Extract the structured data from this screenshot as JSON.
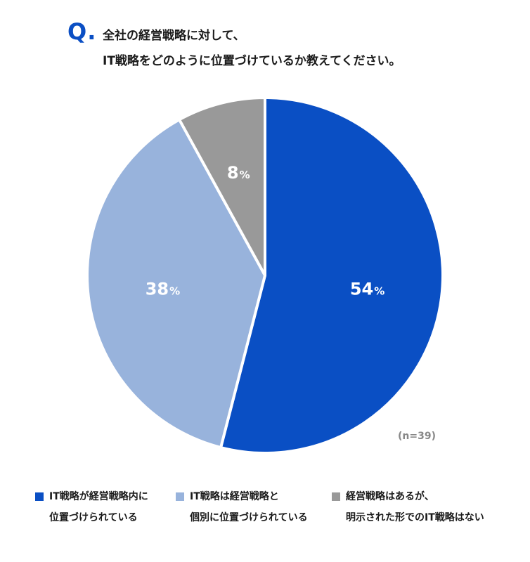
{
  "question": {
    "mark": "Q.",
    "line1": "全社の経営戦略に対して、",
    "line2": "IT戦略をどのように位置づけているか教えてください。"
  },
  "chart_data": {
    "type": "pie",
    "categories": [
      "IT戦略が経営戦略内に位置づけられている",
      "IT戦略は経営戦略と個別に位置づけられている",
      "経営戦略はあるが、明示された形でのIT戦略はない"
    ],
    "values": [
      54,
      38,
      8
    ],
    "unit": "%",
    "colors": [
      "#0a4fc4",
      "#98b3dc",
      "#999999"
    ],
    "sample_note": "(n=39)",
    "legend": {
      "placement": "bottom",
      "items": [
        {
          "line1": "IT戦略が経営戦略内に",
          "line2": "位置づけられている",
          "color": "#0a4fc4"
        },
        {
          "line1": "IT戦略は経営戦略と",
          "line2": "個別に位置づけられている",
          "color": "#98b3dc"
        },
        {
          "line1": "経営戦略はあるが、",
          "line2": "明示された形でのIT戦略はない",
          "color": "#999999"
        }
      ]
    }
  }
}
